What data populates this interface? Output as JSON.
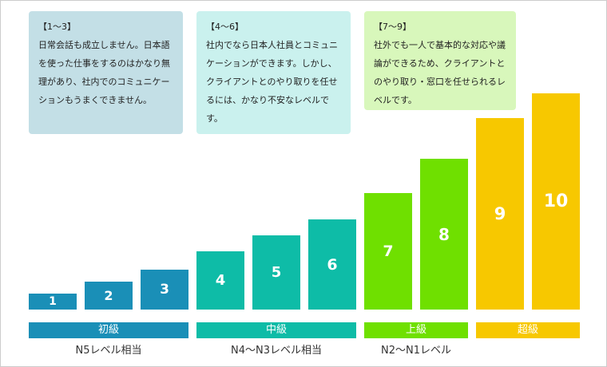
{
  "notes": [
    {
      "title": "【1～3】",
      "body": "日常会話も成立しません。日本語を使った仕事をするのはかなり無理があり、社内でのコミュニケーションもうまくできません。",
      "color": "#c3dfe6"
    },
    {
      "title": "【4～6】",
      "body": "社内でなら日本人社員とコミュニケーションができます。しかし、クライアントとのやり取りを任せるには、かなり不安なレベルです。",
      "color": "#caf1ee"
    },
    {
      "title": "【7～9】",
      "body": "社外でも一人で基本的な対応や議論ができるため、クライアントとのやり取り・窓口を任せられるレベルです。",
      "color": "#d8f7bb"
    }
  ],
  "bars": [
    "1",
    "2",
    "3",
    "4",
    "5",
    "6",
    "7",
    "8",
    "9",
    "10"
  ],
  "groups": [
    {
      "label": "初級",
      "sublabel": "N5レベル相当",
      "color": "#1a8fb7"
    },
    {
      "label": "中級",
      "sublabel": "N4～N3レベル相当",
      "color": "#0ebca7"
    },
    {
      "label": "上級",
      "sublabel": "N2～N1レベル",
      "color": "#6fe000"
    },
    {
      "label": "超級",
      "color": "#f7c800"
    }
  ]
}
